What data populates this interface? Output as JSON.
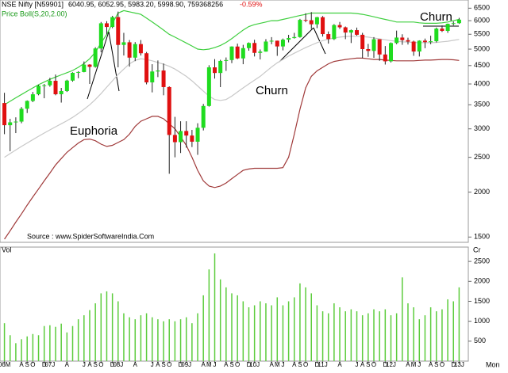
{
  "chart_data": [
    {
      "type": "candlestick",
      "title": "NSE Nifty [N59901]",
      "subtitle": "6040.95, 6052.95, 5983.20, 5998.90, 759368256",
      "change": "-0.59%",
      "indicator": "Price Boll(S,20,2.00)",
      "source": "Source : www.SpiderSoftwareIndia.Com",
      "annotations": [
        "Euphoria",
        "Churn",
        "Churn"
      ],
      "log_scale": true,
      "ylim": [
        1450,
        6850
      ],
      "yticks": [
        1500,
        2000,
        2500,
        3000,
        3500,
        4000,
        4500,
        5000,
        5500,
        6000,
        6500
      ],
      "up_color": "#1fdc1f",
      "down_color": "#e01010",
      "open": [
        3540,
        3071,
        3128,
        3143,
        3413,
        3588,
        3744,
        3955,
        3966,
        4082,
        3745,
        3822,
        4087,
        4296,
        4318,
        4528,
        4464,
        5021,
        5900,
        5762,
        6139,
        5137,
        5224,
        4735,
        5165,
        4870,
        4040,
        4333,
        4360,
        3921,
        2885,
        2755,
        2959,
        2874,
        2763,
        3021,
        3474,
        4449,
        4291,
        4636,
        4662,
        5084,
        4712,
        5033,
        5201,
        4882,
        4922,
        5249,
        5278,
        5087,
        5313,
        5368,
        5402,
        6030,
        6018,
        5863,
        6135,
        5506,
        5333,
        5834,
        5750,
        5561,
        5647,
        5482,
        5001,
        4943,
        5327,
        4832,
        4624,
        5199,
        5385,
        5296,
        5248,
        4924,
        5279,
        5229,
        5259,
        5703,
        5620,
        5880,
        5905
      ],
      "high": [
        3780,
        3200,
        3230,
        3450,
        3600,
        3800,
        3980,
        4000,
        4160,
        4250,
        3900,
        4110,
        4310,
        4340,
        4620,
        4540,
        5060,
        5950,
        5980,
        6190,
        6360,
        5550,
        5300,
        5230,
        5300,
        4910,
        4540,
        4650,
        4560,
        3940,
        3240,
        3150,
        3150,
        2980,
        3110,
        3520,
        4510,
        4690,
        4670,
        4740,
        5090,
        5180,
        5140,
        5220,
        5310,
        4990,
        5330,
        5400,
        5280,
        5350,
        5480,
        5550,
        6070,
        6290,
        6340,
        6150,
        6180,
        5600,
        5870,
        5950,
        5780,
        5670,
        5740,
        5550,
        5170,
        5400,
        5330,
        5100,
        5220,
        5630,
        5500,
        5380,
        5280,
        5290,
        5350,
        5450,
        5740,
        5820,
        5890,
        5970,
        6110
      ],
      "low": [
        2900,
        2600,
        2920,
        3110,
        3320,
        3560,
        3720,
        3650,
        3930,
        3720,
        3550,
        3800,
        4060,
        4150,
        4310,
        4000,
        4440,
        4900,
        5500,
        5720,
        4450,
        4800,
        4470,
        4630,
        4800,
        3990,
        3790,
        4180,
        3720,
        2250,
        2500,
        2570,
        2660,
        2670,
        2540,
        2970,
        3460,
        4140,
        3920,
        4350,
        4570,
        4690,
        4540,
        4950,
        4770,
        4680,
        4920,
        5160,
        4790,
        4960,
        5220,
        5350,
        5380,
        5940,
        5690,
        5720,
        5420,
        5180,
        5300,
        5690,
        5330,
        5200,
        5450,
        4720,
        4760,
        4730,
        4640,
        4530,
        4590,
        5160,
        5140,
        5150,
        4790,
        4770,
        5030,
        5160,
        5220,
        5580,
        5550,
        5820,
        5880
      ],
      "close": [
        3071,
        3128,
        3143,
        3413,
        3588,
        3744,
        3955,
        3966,
        4082,
        3745,
        3822,
        4087,
        4296,
        4318,
        4528,
        4464,
        5021,
        5900,
        5762,
        6139,
        5137,
        5224,
        4735,
        5165,
        4870,
        4040,
        4333,
        4360,
        3921,
        2885,
        2755,
        2959,
        2874,
        2763,
        3021,
        3474,
        4449,
        4291,
        4636,
        4662,
        5084,
        4712,
        5033,
        5201,
        4882,
        4922,
        5249,
        5278,
        5087,
        5313,
        5368,
        5402,
        6030,
        6018,
        5863,
        6135,
        5506,
        5333,
        5834,
        5750,
        5561,
        5647,
        5482,
        5001,
        4943,
        5327,
        4832,
        4624,
        5199,
        5385,
        5296,
        5248,
        4924,
        5279,
        5229,
        5259,
        5703,
        5620,
        5880,
        5905,
        6040
      ],
      "bands": {
        "upper": {
          "color": "#3fcf3f",
          "values": [
            3500,
            3580,
            3660,
            3740,
            3820,
            3900,
            3980,
            4050,
            4120,
            4180,
            4240,
            4300,
            4360,
            4450,
            4560,
            4700,
            4900,
            5200,
            5500,
            5900,
            6300,
            6400,
            6350,
            6300,
            6250,
            6100,
            5950,
            5800,
            5650,
            5500,
            5400,
            5300,
            5200,
            5100,
            5000,
            4980,
            5000,
            5050,
            5120,
            5220,
            5350,
            5500,
            5650,
            5780,
            5850,
            5900,
            5950,
            6000,
            6000,
            6050,
            6100,
            6150,
            6200,
            6250,
            6300,
            6300,
            6300,
            6300,
            6300,
            6300,
            6300,
            6300,
            6280,
            6250,
            6200,
            6150,
            6100,
            6050,
            6000,
            5950,
            5950,
            5950,
            5950,
            5920,
            5900,
            5900,
            5900,
            5920,
            5950,
            6000,
            6050
          ]
        },
        "middle": {
          "color": "#c8c8c8",
          "values": [
            2500,
            2560,
            2620,
            2680,
            2740,
            2800,
            2860,
            2920,
            2980,
            3040,
            3100,
            3160,
            3230,
            3310,
            3400,
            3500,
            3620,
            3760,
            3920,
            4080,
            4250,
            4400,
            4550,
            4650,
            4700,
            4680,
            4640,
            4590,
            4540,
            4480,
            4400,
            4300,
            4200,
            4080,
            3950,
            3820,
            3700,
            3620,
            3600,
            3620,
            3700,
            3800,
            3900,
            4000,
            4100,
            4200,
            4330,
            4460,
            4580,
            4680,
            4780,
            4870,
            4960,
            5050,
            5130,
            5210,
            5280,
            5330,
            5370,
            5400,
            5420,
            5430,
            5430,
            5420,
            5400,
            5370,
            5340,
            5310,
            5280,
            5260,
            5240,
            5230,
            5220,
            5210,
            5210,
            5210,
            5220,
            5240,
            5260,
            5290,
            5320
          ]
        },
        "lower": {
          "color": "#a03a3a",
          "values": [
            1480,
            1560,
            1650,
            1740,
            1840,
            1940,
            2040,
            2150,
            2260,
            2380,
            2480,
            2580,
            2660,
            2740,
            2800,
            2810,
            2780,
            2720,
            2680,
            2700,
            2750,
            2800,
            2900,
            3050,
            3150,
            3200,
            3250,
            3250,
            3200,
            3100,
            3000,
            2850,
            2700,
            2500,
            2300,
            2150,
            2080,
            2060,
            2080,
            2120,
            2180,
            2240,
            2300,
            2320,
            2330,
            2330,
            2330,
            2330,
            2330,
            2340,
            2500,
            2900,
            3400,
            3900,
            4200,
            4350,
            4450,
            4550,
            4620,
            4650,
            4680,
            4700,
            4720,
            4720,
            4700,
            4680,
            4680,
            4660,
            4650,
            4640,
            4640,
            4640,
            4640,
            4650,
            4660,
            4660,
            4670,
            4680,
            4680,
            4670,
            4650
          ]
        }
      }
    },
    {
      "type": "bar",
      "title": "Vol",
      "unit": "Cr",
      "xlabel": "Mon",
      "color": "#5ccc3c",
      "ylim": [
        0,
        2860
      ],
      "yticks": [
        500,
        1000,
        1500,
        2000,
        2500
      ],
      "categories": [
        "06M",
        null,
        null,
        "A",
        "S",
        "O",
        null,
        "D",
        "07J",
        null,
        null,
        "A",
        null,
        null,
        "J",
        "A",
        "S",
        "O",
        null,
        "D",
        "08J",
        null,
        null,
        "A",
        null,
        null,
        "J",
        "A",
        "S",
        "O",
        null,
        "D",
        "09J",
        null,
        null,
        "A",
        "M",
        "J",
        null,
        "A",
        "S",
        "O",
        null,
        "D",
        "10J",
        null,
        null,
        "A",
        "M",
        "J",
        null,
        "A",
        "S",
        "O",
        null,
        "D",
        "11J",
        null,
        null,
        "A",
        null,
        null,
        "J",
        "A",
        "S",
        "O",
        null,
        "D",
        "12J",
        null,
        null,
        "A",
        "M",
        "J",
        null,
        "A",
        "S",
        "O",
        null,
        "D",
        "13J"
      ],
      "values": [
        950,
        650,
        450,
        550,
        620,
        680,
        650,
        880,
        900,
        860,
        940,
        720,
        880,
        1050,
        1150,
        1280,
        1450,
        1700,
        1750,
        1700,
        1500,
        1200,
        1100,
        1050,
        1150,
        1200,
        1100,
        1050,
        1000,
        1050,
        1000,
        1050,
        1100,
        950,
        1200,
        1650,
        2300,
        2700,
        2050,
        1850,
        1700,
        1650,
        1500,
        1350,
        1400,
        1500,
        1450,
        1400,
        1600,
        1400,
        1500,
        1600,
        1950,
        1850,
        1700,
        1400,
        1250,
        1200,
        1450,
        1350,
        1250,
        1300,
        1250,
        1150,
        1200,
        1300,
        1250,
        1300,
        1150,
        1200,
        2100,
        1450,
        1350,
        1050,
        1150,
        1350,
        1250,
        1300,
        1550,
        1500,
        1850
      ]
    }
  ]
}
